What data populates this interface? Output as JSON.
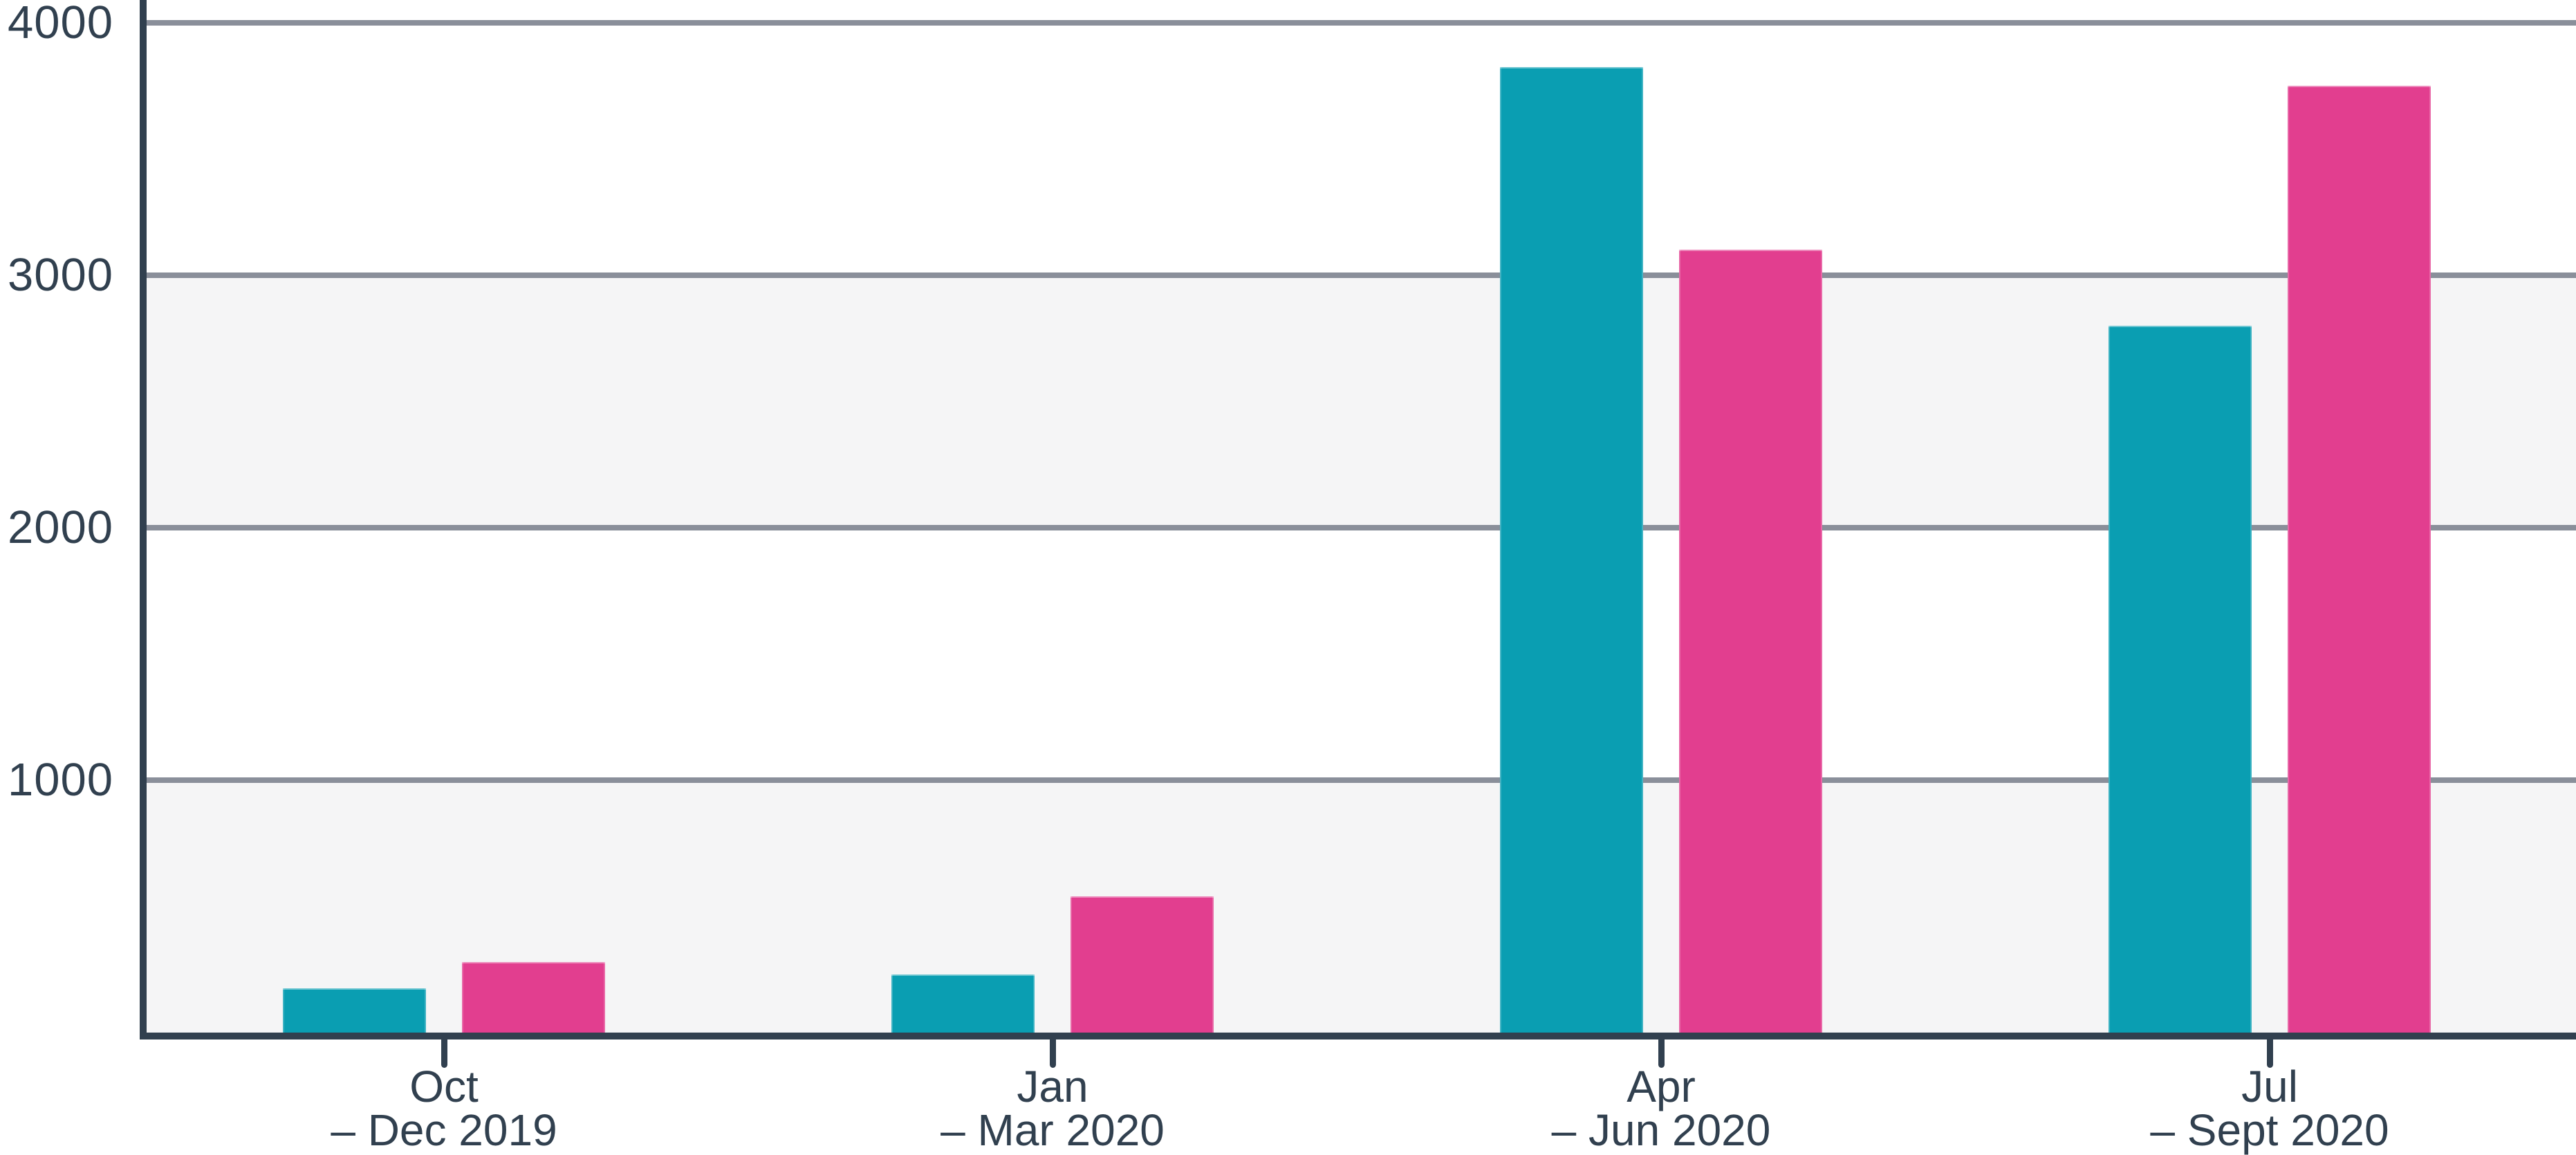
{
  "chart_data": {
    "type": "bar",
    "title": "",
    "xlabel": "",
    "ylabel": "",
    "legend": "none",
    "grid": "horizontal",
    "categories": [
      {
        "line1": "Oct",
        "line2": "– Dec 2019"
      },
      {
        "line1": "Jan",
        "line2": "– Mar 2020"
      },
      {
        "line1": "Apr",
        "line2": "– Jun 2020"
      },
      {
        "line1": "Jul",
        "line2": "– Sept 2020"
      }
    ],
    "series": [
      {
        "name": "teal",
        "color": "#0A9EB2",
        "values": [
          175,
          230,
          3825,
          2800
        ]
      },
      {
        "name": "pink",
        "color": "#E23E8F",
        "values": [
          280,
          540,
          3100,
          3750
        ]
      }
    ],
    "yaxis": {
      "ticks": [
        1000,
        2000,
        3000,
        4000
      ],
      "tick_labels": [
        "1000",
        "2000",
        "3000",
        "4000"
      ],
      "ylim": [
        0,
        4090
      ],
      "gray_bands": [
        [
          0,
          1000
        ],
        [
          2000,
          3000
        ]
      ]
    },
    "colors": {
      "axis": "#31404F",
      "gridline": "#8A8F9A",
      "band": "#F5F5F6",
      "background": "#FFFFFF",
      "text": "#31404F"
    }
  }
}
